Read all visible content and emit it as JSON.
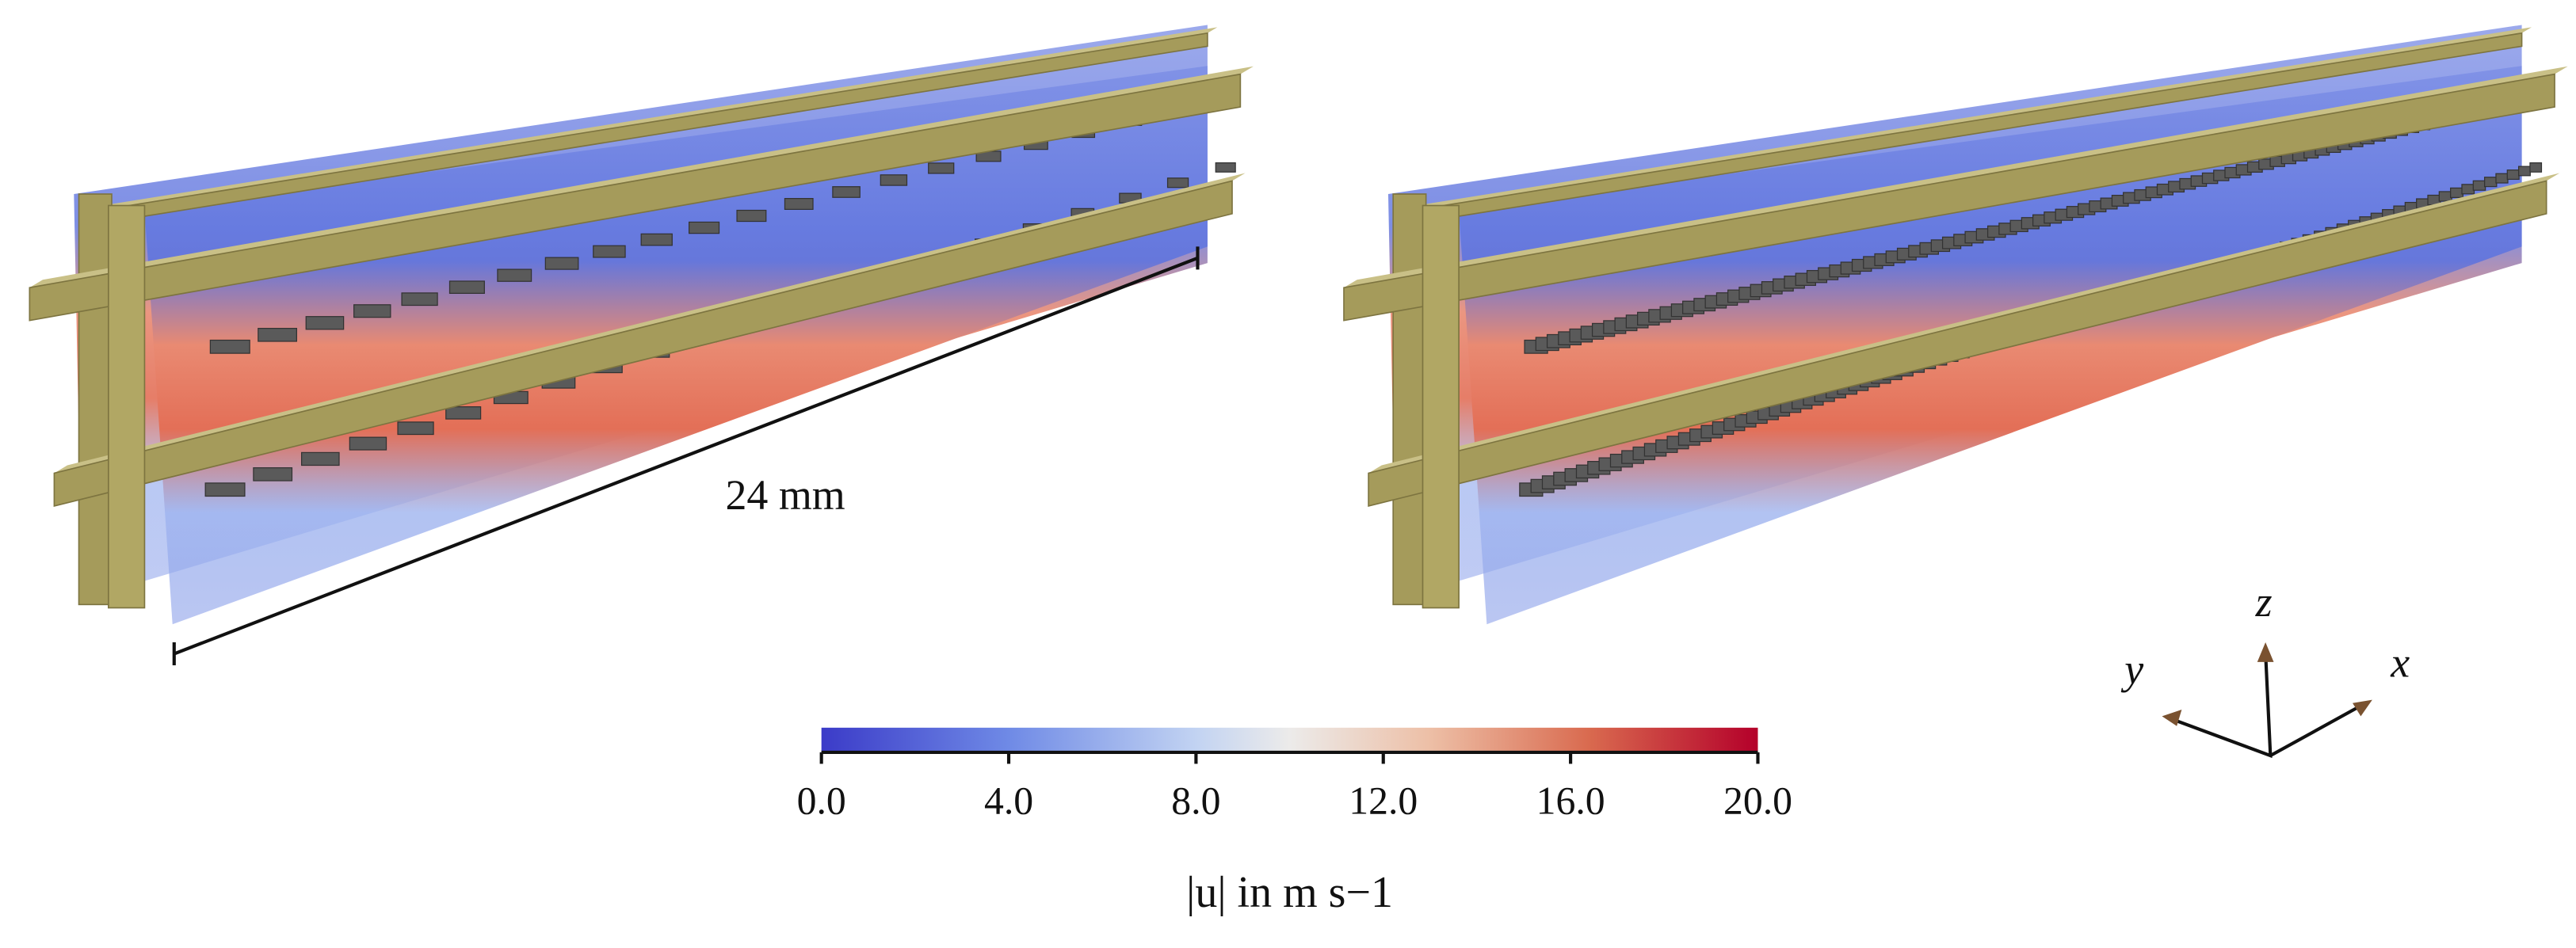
{
  "dimension_label": "24 mm",
  "colorbar": {
    "label": "|u| in m s−1",
    "lim": [
      0,
      20
    ],
    "ticks": [
      {
        "value": 0,
        "label": "0.0"
      },
      {
        "value": 4,
        "label": "4.0"
      },
      {
        "value": 8,
        "label": "8.0"
      },
      {
        "value": 12,
        "label": "12.0"
      },
      {
        "value": 16,
        "label": "16.0"
      },
      {
        "value": 20,
        "label": "20.0"
      }
    ]
  },
  "axes": {
    "x": "x",
    "y": "y",
    "z": "z"
  }
}
